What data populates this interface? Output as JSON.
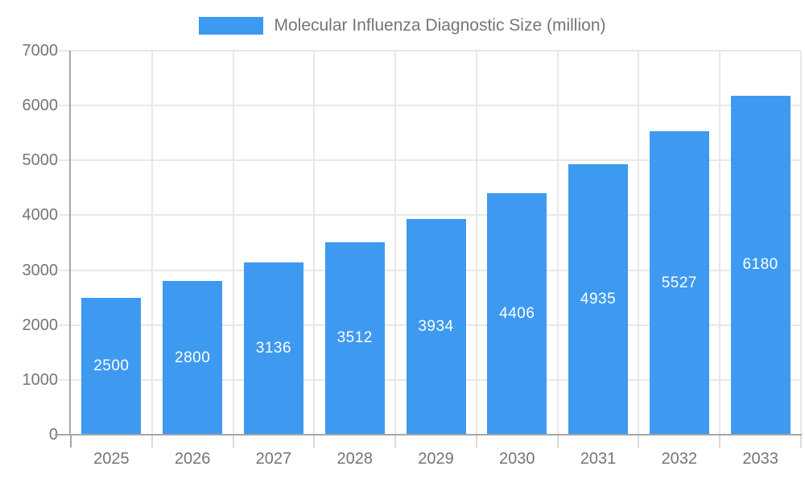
{
  "chart_data": {
    "type": "bar",
    "title": "Molecular Influenza Diagnostic Size (million)",
    "legend": {
      "position": "top",
      "label": "Molecular Influenza Diagnostic Size (million)"
    },
    "categories": [
      "2025",
      "2026",
      "2027",
      "2028",
      "2029",
      "2030",
      "2031",
      "2032",
      "2033"
    ],
    "series": [
      {
        "name": "Molecular Influenza Diagnostic Size (million)",
        "values": [
          2500,
          2800,
          3136,
          3512,
          3934,
          4406,
          4935,
          5527,
          6180
        ]
      }
    ],
    "value_labels_visible": true,
    "xlabel": "",
    "ylabel": "",
    "ylim": [
      0,
      7000
    ],
    "yticks": [
      0,
      1000,
      2000,
      3000,
      4000,
      5000,
      6000,
      7000
    ],
    "grid": true,
    "colors": {
      "bar": "#3D9AF0",
      "text": "#757575",
      "grid": "#E8E8E8",
      "axis": "#A6A6A6",
      "tick": "#D9D9D9",
      "value_label": "#FFFFFF",
      "background": "#FFFFFF"
    }
  }
}
